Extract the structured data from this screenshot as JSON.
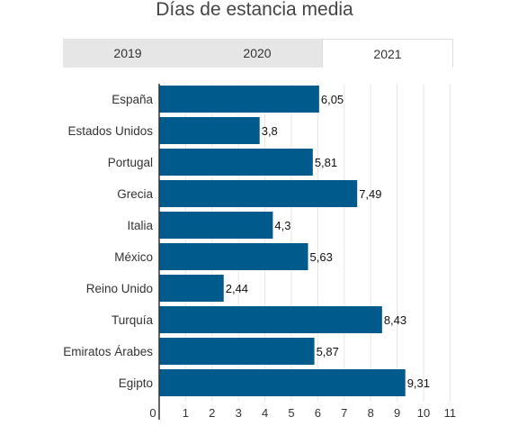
{
  "title": "Días de estancia media",
  "tabs": [
    {
      "label": "2019",
      "active": false
    },
    {
      "label": "2020",
      "active": false
    },
    {
      "label": "2021",
      "active": true
    }
  ],
  "colors": {
    "bar": "#005a8c",
    "grid": "#e6e6e6",
    "axis": "#333333"
  },
  "chart_data": {
    "type": "bar",
    "orientation": "horizontal",
    "title": "Días de estancia media",
    "categories": [
      "España",
      "Estados Unidos",
      "Portugal",
      "Grecia",
      "Italia",
      "México",
      "Reino Unido",
      "Turquía",
      "Emiratos Árabes",
      "Egipto"
    ],
    "values": [
      6.05,
      3.8,
      5.81,
      7.49,
      4.3,
      5.63,
      2.44,
      8.43,
      5.87,
      9.31
    ],
    "value_labels": [
      "6,05",
      "3,8",
      "5,81",
      "7,49",
      "4,3",
      "5,63",
      "2,44",
      "8,43",
      "5,87",
      "9,31"
    ],
    "xlim": [
      0,
      11
    ],
    "xticks": [
      0,
      1,
      2,
      3,
      4,
      5,
      6,
      7,
      8,
      9,
      10,
      11
    ],
    "grid": true,
    "xlabel": "",
    "ylabel": ""
  }
}
